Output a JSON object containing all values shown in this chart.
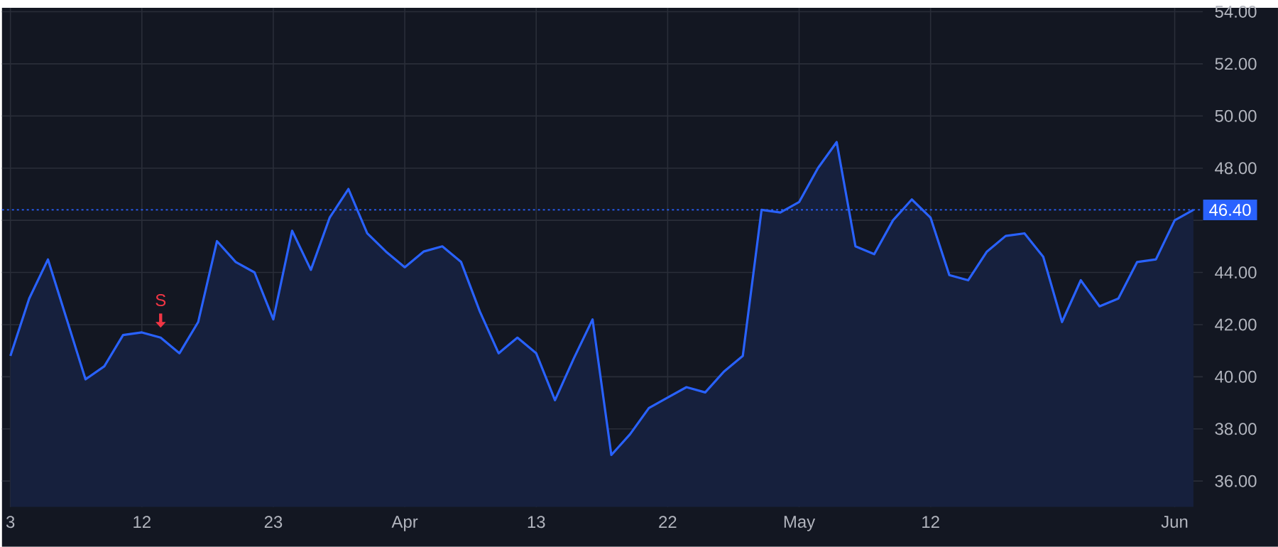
{
  "chart_data": {
    "type": "area",
    "color": "#2962ff",
    "categories": [
      "3",
      null,
      null,
      null,
      null,
      null,
      null,
      "12",
      null,
      null,
      null,
      null,
      null,
      null,
      "23",
      null,
      null,
      null,
      null,
      null,
      null,
      "Apr",
      null,
      null,
      null,
      null,
      null,
      null,
      "13",
      null,
      null,
      null,
      null,
      null,
      null,
      "22",
      null,
      null,
      null,
      null,
      null,
      null,
      "May",
      null,
      null,
      null,
      null,
      null,
      null,
      "12",
      null,
      null,
      null,
      null,
      null,
      null,
      null,
      null,
      null,
      null,
      null,
      null,
      "Jun",
      null
    ],
    "values": [
      40.8,
      43.0,
      44.5,
      42.2,
      39.9,
      40.4,
      41.6,
      41.7,
      41.5,
      40.9,
      42.1,
      45.2,
      44.4,
      44.0,
      42.2,
      45.6,
      44.1,
      46.1,
      47.2,
      45.5,
      44.8,
      44.2,
      44.8,
      45.0,
      44.4,
      42.5,
      40.9,
      41.5,
      40.9,
      39.1,
      40.7,
      42.2,
      37.0,
      37.8,
      38.8,
      39.2,
      39.6,
      39.4,
      40.2,
      40.8,
      46.4,
      46.3,
      46.7,
      48.0,
      49.0,
      45.0,
      44.7,
      46.0,
      46.8,
      46.1,
      43.9,
      43.7,
      44.8,
      45.4,
      45.5,
      44.6,
      42.1,
      43.7,
      42.7,
      43.0,
      44.4,
      44.5,
      46.0,
      46.4
    ],
    "ylim": [
      35.0,
      54.15
    ],
    "yticks": [
      {
        "value": 36,
        "label": "36.00"
      },
      {
        "value": 38,
        "label": "38.00"
      },
      {
        "value": 40,
        "label": "40.00"
      },
      {
        "value": 42,
        "label": "42.00"
      },
      {
        "value": 44,
        "label": "44.00"
      },
      {
        "value": 46,
        "label": null
      },
      {
        "value": 48,
        "label": "48.00"
      },
      {
        "value": 50,
        "label": "50.00"
      },
      {
        "value": 52,
        "label": "52.00"
      },
      {
        "value": 54,
        "label": "54.00"
      }
    ],
    "ref_lines": [
      {
        "axis": "y",
        "value": 46.4,
        "label": "46.40",
        "color": "#2962ff",
        "line_style": "dotted"
      }
    ],
    "annotations": [
      {
        "text": "S",
        "y": 41.5
      }
    ],
    "grid": true
  }
}
